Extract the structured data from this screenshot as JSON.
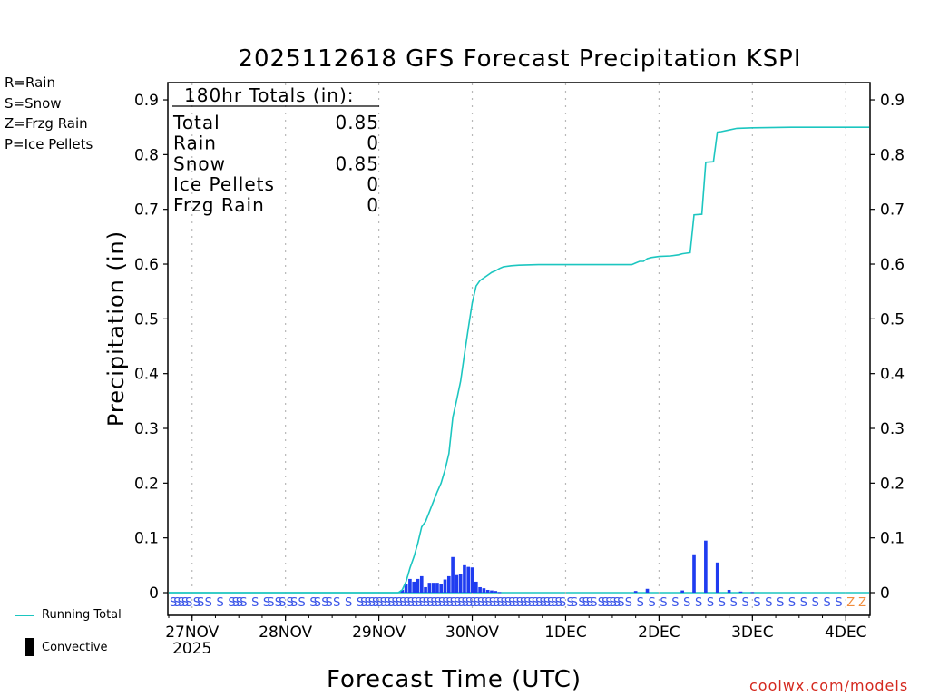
{
  "chart_data": {
    "type": "bar",
    "title": "2025112618 GFS Forecast Precipitation KSPI",
    "ylabel": "Precipitation (in)",
    "xlabel": "Forecast Time (UTC)",
    "ylim": [
      0,
      0.92
    ],
    "yticks": [
      0,
      0.1,
      0.2,
      0.3,
      0.4,
      0.5,
      0.6,
      0.7,
      0.8,
      0.9
    ],
    "ytick_labels": [
      "0",
      "0.1",
      "0.2",
      "0.3",
      "0.4",
      "0.5",
      "0.6",
      "0.7",
      "0.8",
      "0.9"
    ],
    "xlim_hours": [
      0,
      180
    ],
    "x_ticks": [
      {
        "hour": 6,
        "label": "27NOV",
        "sub": "2025"
      },
      {
        "hour": 30,
        "label": "28NOV"
      },
      {
        "hour": 54,
        "label": "29NOV"
      },
      {
        "hour": 78,
        "label": "30NOV"
      },
      {
        "hour": 102,
        "label": "1DEC"
      },
      {
        "hour": 126,
        "label": "2DEC"
      },
      {
        "hour": 150,
        "label": "3DEC"
      },
      {
        "hour": 174,
        "label": "4DEC"
      }
    ],
    "grid": "dotted vertical at day boundaries",
    "legend": [
      {
        "label": "R=Rain",
        "color": "#22cc22"
      },
      {
        "label": "S=Snow",
        "color": "#3a55e8"
      },
      {
        "label": "Z=Frzg Rain",
        "color": "#f08c3c"
      },
      {
        "label": "P=Ice Pellets",
        "color": "#e0309a"
      }
    ],
    "key": {
      "running_total": "Running Total",
      "convective": "Convective"
    },
    "totals": {
      "header": "180hr Totals (in):",
      "rows": [
        {
          "label": "Total",
          "value": "0.85"
        },
        {
          "label": "Rain",
          "value": "0"
        },
        {
          "label": "Snow",
          "value": "0.85"
        },
        {
          "label": "Ice Pellets",
          "value": "0"
        },
        {
          "label": "Frzg Rain",
          "value": "0"
        }
      ]
    },
    "bars": {
      "color": "#1f3cf0",
      "hours": [
        60,
        61,
        62,
        63,
        64,
        65,
        66,
        67,
        68,
        69,
        70,
        71,
        72,
        73,
        74,
        75,
        76,
        77,
        78,
        79,
        80,
        81,
        82,
        83,
        84,
        85,
        120,
        123,
        132,
        135,
        138,
        141,
        144,
        147,
        150
      ],
      "values": [
        0.005,
        0.015,
        0.025,
        0.02,
        0.025,
        0.03,
        0.01,
        0.018,
        0.018,
        0.018,
        0.016,
        0.024,
        0.03,
        0.065,
        0.032,
        0.034,
        0.05,
        0.047,
        0.046,
        0.02,
        0.01,
        0.008,
        0.005,
        0.004,
        0.003,
        0.001,
        0.003,
        0.007,
        0.004,
        0.07,
        0.095,
        0.055,
        0.005,
        0.002,
        0.001
      ]
    },
    "series": [
      {
        "name": "Running Total",
        "color": "#1cc6c0",
        "x": [
          0,
          59,
          60,
          61,
          62,
          63,
          64,
          65,
          66,
          67,
          68,
          69,
          70,
          71,
          72,
          73,
          74,
          75,
          76,
          77,
          78,
          79,
          80,
          81,
          82,
          83,
          84,
          85,
          86,
          88,
          90,
          95,
          100,
          110,
          119,
          120,
          121,
          122,
          123,
          124,
          126,
          129,
          131,
          132,
          133,
          134,
          135,
          137,
          138,
          140,
          141,
          142,
          144,
          146,
          150,
          160,
          170,
          180
        ],
        "y": [
          0,
          0,
          0.005,
          0.02,
          0.045,
          0.065,
          0.09,
          0.12,
          0.13,
          0.148,
          0.166,
          0.184,
          0.2,
          0.224,
          0.254,
          0.32,
          0.352,
          0.386,
          0.436,
          0.483,
          0.529,
          0.56,
          0.57,
          0.575,
          0.58,
          0.585,
          0.588,
          0.592,
          0.595,
          0.597,
          0.598,
          0.599,
          0.599,
          0.599,
          0.599,
          0.602,
          0.605,
          0.605,
          0.61,
          0.612,
          0.614,
          0.615,
          0.617,
          0.619,
          0.62,
          0.621,
          0.69,
          0.691,
          0.786,
          0.787,
          0.841,
          0.842,
          0.845,
          0.848,
          0.849,
          0.85,
          0.85,
          0.85
        ]
      }
    ],
    "ptype_row": {
      "s_hours": [
        0,
        1,
        2,
        3,
        4,
        6,
        7,
        9,
        12,
        15,
        16,
        17,
        18,
        21,
        24,
        25,
        27,
        28,
        30,
        31,
        33,
        36,
        37,
        39,
        40,
        42,
        45,
        48,
        49,
        50,
        51,
        52,
        53,
        54,
        55,
        56,
        57,
        58,
        59,
        60,
        61,
        62,
        63,
        64,
        65,
        66,
        67,
        68,
        69,
        70,
        71,
        72,
        73,
        74,
        75,
        76,
        77,
        78,
        79,
        80,
        81,
        82,
        83,
        84,
        85,
        86,
        87,
        88,
        89,
        90,
        91,
        92,
        93,
        94,
        95,
        96,
        97,
        98,
        99,
        100,
        102,
        103,
        105,
        106,
        107,
        108,
        110,
        111,
        112,
        113,
        114,
        115,
        117,
        120,
        123,
        126,
        129,
        132,
        135,
        138,
        141,
        144,
        147,
        150,
        153,
        156,
        159,
        162,
        165,
        168,
        171
      ],
      "z_hours": [
        174,
        177
      ],
      "s_label": "S",
      "z_label": "Z"
    }
  }
}
